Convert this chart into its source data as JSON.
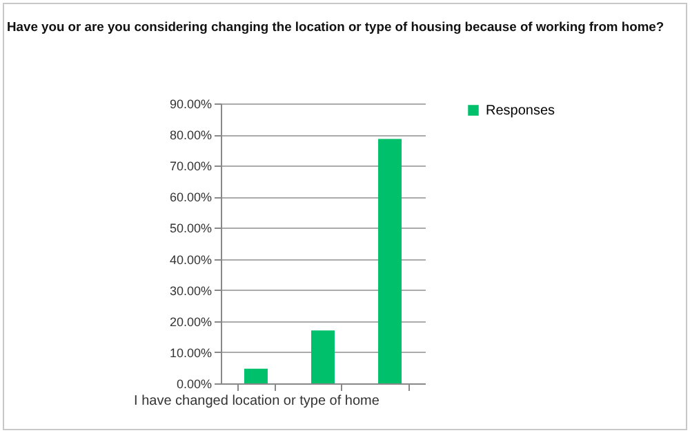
{
  "chart_data": {
    "type": "bar",
    "title": "Have you or are you considering changing the location or type of housing because of working from home?",
    "categories": [
      "I have changed location or type of home",
      null,
      null
    ],
    "series": [
      {
        "name": "Responses",
        "color": "#00c06b",
        "values": [
          4.7,
          17,
          78.6
        ]
      }
    ],
    "ylim": [
      0,
      90
    ],
    "yticks": [
      {
        "value": 0,
        "label": "0.00%"
      },
      {
        "value": 10,
        "label": "10.00%"
      },
      {
        "value": 20,
        "label": "20.00%"
      },
      {
        "value": 30,
        "label": "30.00%"
      },
      {
        "value": 40,
        "label": "40.00%"
      },
      {
        "value": 50,
        "label": "50.00%"
      },
      {
        "value": 60,
        "label": "60.00%"
      },
      {
        "value": 70,
        "label": "70.00%"
      },
      {
        "value": 80,
        "label": "80.00%"
      },
      {
        "value": 90,
        "label": "90.00%"
      }
    ],
    "grid": "y",
    "legend": "right"
  }
}
